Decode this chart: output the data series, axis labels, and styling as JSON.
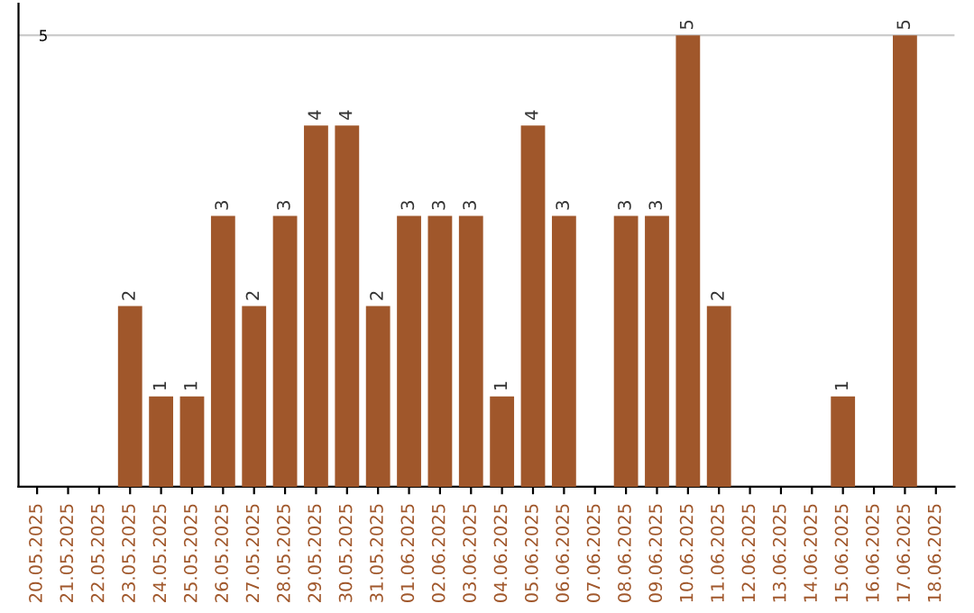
{
  "chart_data": {
    "type": "bar",
    "categories": [
      "20.05.2025",
      "21.05.2025",
      "22.05.2025",
      "23.05.2025",
      "24.05.2025",
      "25.05.2025",
      "26.05.2025",
      "27.05.2025",
      "28.05.2025",
      "29.05.2025",
      "30.05.2025",
      "31.05.2025",
      "01.06.2025",
      "02.06.2025",
      "03.06.2025",
      "04.06.2025",
      "05.06.2025",
      "06.06.2025",
      "07.06.2025",
      "08.06.2025",
      "09.06.2025",
      "10.06.2025",
      "11.06.2025",
      "12.06.2025",
      "13.06.2025",
      "14.06.2025",
      "15.06.2025",
      "16.06.2025",
      "17.06.2025",
      "18.06.2025"
    ],
    "values": [
      0,
      0,
      0,
      2,
      1,
      1,
      3,
      2,
      3,
      4,
      4,
      2,
      3,
      3,
      3,
      1,
      4,
      3,
      0,
      3,
      3,
      5,
      2,
      0,
      0,
      0,
      1,
      0,
      5,
      0
    ],
    "value_labels": [
      null,
      null,
      null,
      "2",
      "1",
      "1",
      "3",
      "2",
      "3",
      "4",
      "4",
      "2",
      "3",
      "3",
      "3",
      "1",
      "4",
      "3",
      null,
      "3",
      "3",
      "5",
      "2",
      null,
      null,
      null,
      "1",
      null,
      "5",
      null
    ],
    "color": "#a0572b",
    "ylim": [
      0,
      5.35
    ],
    "yticks": [
      5
    ],
    "grid": "y"
  }
}
